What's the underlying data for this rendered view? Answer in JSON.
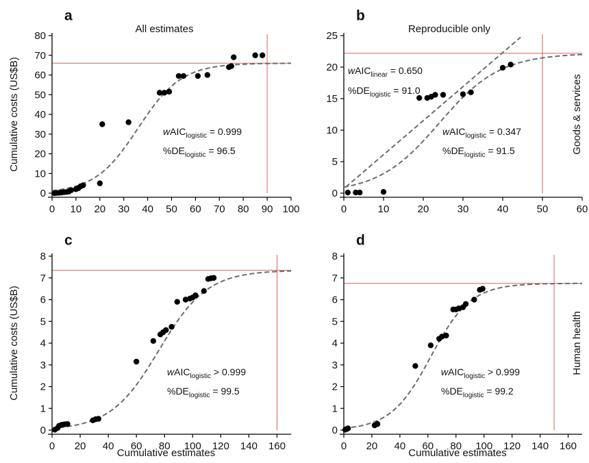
{
  "y_axis_label": "Cumulative costs (US$B)",
  "x_axis_label": "Cumulative estimates",
  "row_labels": [
    "Goods & services",
    "Human health"
  ],
  "colors": {
    "points": "#000000",
    "fit": "#6b6b6b",
    "asymptote": "#d9625a",
    "axis": "#000000"
  },
  "chart_data": [
    {
      "type": "scatter",
      "panel": "a",
      "title": "All estimates",
      "xlim": [
        0,
        100
      ],
      "ylim": [
        0,
        80
      ],
      "xticks": [
        0,
        10,
        20,
        30,
        40,
        50,
        60,
        70,
        80,
        90,
        100
      ],
      "yticks": [
        0,
        10,
        20,
        30,
        40,
        50,
        60,
        70,
        80
      ],
      "asymptote_y": 66,
      "vline_x": 90,
      "fit": {
        "model": "logistic",
        "K": 66,
        "r": 0.11,
        "x0": 36
      },
      "annotations": [
        {
          "prefix": "w",
          "main": "AIC",
          "sub": "logistic",
          "suffix": " = 0.999"
        },
        {
          "prefix": "",
          "main": "%DE",
          "sub": "logistic",
          "suffix": " = 96.5"
        }
      ],
      "points": [
        [
          1,
          0
        ],
        [
          2,
          0.1
        ],
        [
          3,
          0.2
        ],
        [
          4,
          0.3
        ],
        [
          5,
          0.5
        ],
        [
          6,
          0.6
        ],
        [
          7,
          0.8
        ],
        [
          8,
          1.5
        ],
        [
          10,
          2
        ],
        [
          11,
          2.5
        ],
        [
          12,
          3.5
        ],
        [
          13,
          4
        ],
        [
          20,
          5
        ],
        [
          21,
          35
        ],
        [
          32,
          36
        ],
        [
          45,
          51
        ],
        [
          47,
          51
        ],
        [
          49,
          51.5
        ],
        [
          53,
          59.5
        ],
        [
          55,
          59.5
        ],
        [
          61,
          59.5
        ],
        [
          65,
          60
        ],
        [
          74,
          64
        ],
        [
          75,
          64.5
        ],
        [
          76,
          69
        ],
        [
          85,
          70
        ],
        [
          88,
          70
        ]
      ]
    },
    {
      "type": "scatter",
      "panel": "b",
      "title": "Reproducible only",
      "xlim": [
        0,
        60
      ],
      "ylim": [
        0,
        25
      ],
      "xticks": [
        0,
        10,
        20,
        30,
        40,
        50,
        60
      ],
      "yticks": [
        0,
        5,
        10,
        15,
        20,
        25
      ],
      "asymptote_y": 22.2,
      "vline_x": 50,
      "fit": {
        "model": "logistic",
        "K": 22.2,
        "r": 0.13,
        "x0": 24
      },
      "linear_fit": {
        "slope": 0.54,
        "intercept": 0.7,
        "x_range": [
          0.5,
          44.5
        ]
      },
      "annotations": [
        {
          "prefix": "w",
          "main": "AIC",
          "sub": "linear",
          "suffix": " = 0.650"
        },
        {
          "prefix": "",
          "main": "%DE",
          "sub": "logistic",
          "suffix": " = 91.0"
        },
        {
          "prefix": "w",
          "main": "AIC",
          "sub": "logistic",
          "suffix": " = 0.347"
        },
        {
          "prefix": "",
          "main": "%DE",
          "sub": "logistic",
          "suffix": " = 91.5"
        }
      ],
      "points": [
        [
          1,
          0.1
        ],
        [
          3,
          0.1
        ],
        [
          4,
          0.1
        ],
        [
          10,
          0.2
        ],
        [
          19,
          15.1
        ],
        [
          21,
          15.1
        ],
        [
          22,
          15.3
        ],
        [
          23,
          15.6
        ],
        [
          25,
          15.6
        ],
        [
          30,
          15.7
        ],
        [
          32,
          16
        ],
        [
          40,
          19.9
        ],
        [
          42,
          20.4
        ]
      ]
    },
    {
      "type": "scatter",
      "panel": "c",
      "title": "",
      "xlim": [
        0,
        170
      ],
      "ylim": [
        0,
        8
      ],
      "xticks": [
        0,
        20,
        40,
        60,
        80,
        100,
        120,
        140,
        160
      ],
      "yticks": [
        0,
        1,
        2,
        3,
        4,
        5,
        6,
        7,
        8
      ],
      "asymptote_y": 7.35,
      "vline_x": 160,
      "fit": {
        "model": "logistic",
        "K": 7.35,
        "r": 0.058,
        "x0": 76
      },
      "annotations": [
        {
          "prefix": "w",
          "main": "AIC",
          "sub": "logistic",
          "suffix": " > 0.999"
        },
        {
          "prefix": "",
          "main": "%DE",
          "sub": "logistic",
          "suffix": " = 99.5"
        }
      ],
      "points": [
        [
          2,
          0.02
        ],
        [
          4,
          0.1
        ],
        [
          5,
          0.2
        ],
        [
          7,
          0.25
        ],
        [
          9,
          0.27
        ],
        [
          11,
          0.28
        ],
        [
          29,
          0.45
        ],
        [
          31,
          0.5
        ],
        [
          33,
          0.52
        ],
        [
          60,
          3.15
        ],
        [
          72,
          4.1
        ],
        [
          77,
          4.4
        ],
        [
          79,
          4.5
        ],
        [
          81,
          4.6
        ],
        [
          85,
          4.75
        ],
        [
          89,
          5.9
        ],
        [
          95,
          6.0
        ],
        [
          98,
          6.05
        ],
        [
          100,
          6.1
        ],
        [
          102,
          6.2
        ],
        [
          108,
          6.4
        ],
        [
          111,
          6.95
        ],
        [
          113,
          6.98
        ],
        [
          115,
          7.0
        ]
      ]
    },
    {
      "type": "scatter",
      "panel": "d",
      "title": "",
      "xlim": [
        0,
        170
      ],
      "ylim": [
        0,
        8
      ],
      "xticks": [
        0,
        20,
        40,
        60,
        80,
        100,
        120,
        140,
        160
      ],
      "yticks": [
        0,
        1,
        2,
        3,
        4,
        5,
        6,
        7,
        8
      ],
      "asymptote_y": 6.75,
      "vline_x": 150,
      "fit": {
        "model": "logistic",
        "K": 6.75,
        "r": 0.07,
        "x0": 62
      },
      "annotations": [
        {
          "prefix": "w",
          "main": "AIC",
          "sub": "logistic",
          "suffix": " > 0.999"
        },
        {
          "prefix": "",
          "main": "%DE",
          "sub": "logistic",
          "suffix": " = 99.2"
        }
      ],
      "points": [
        [
          1,
          0.02
        ],
        [
          2,
          0.05
        ],
        [
          3,
          0.08
        ],
        [
          22,
          0.22
        ],
        [
          24,
          0.28
        ],
        [
          51,
          2.95
        ],
        [
          62,
          3.9
        ],
        [
          68,
          4.2
        ],
        [
          70,
          4.3
        ],
        [
          73,
          4.35
        ],
        [
          78,
          5.55
        ],
        [
          80,
          5.55
        ],
        [
          82,
          5.6
        ],
        [
          85,
          5.65
        ],
        [
          87,
          5.8
        ],
        [
          93,
          6.0
        ],
        [
          97,
          6.45
        ],
        [
          99,
          6.5
        ]
      ]
    }
  ]
}
